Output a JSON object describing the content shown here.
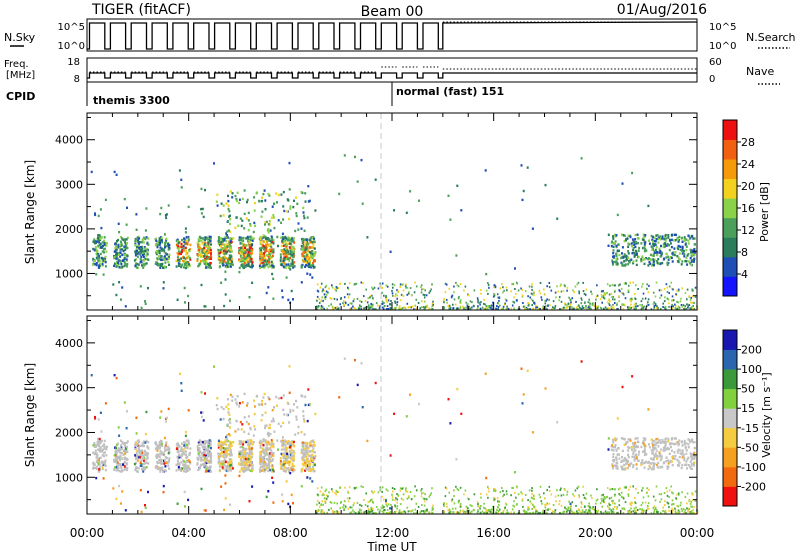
{
  "header": {
    "radar": "TIGER (fitACF)",
    "beam": "Beam 00",
    "date": "01/Aug/2016"
  },
  "panels_top": {
    "nsky_label": "N.Sky",
    "nsearch_label": "N.Search",
    "nsky_ticks": [
      "10^5",
      "10^0"
    ],
    "freq_label_line1": "Freq.",
    "freq_label_line2": "[MHz]",
    "freq_ticks": [
      "18",
      "8"
    ],
    "nave_label": "Nave",
    "nave_ticks": [
      "60",
      "0"
    ],
    "cpid_label": "CPID",
    "cpid_segments": [
      {
        "name": "themis 3300",
        "start_hour": 0,
        "end_hour": 12
      },
      {
        "name": "normal (fast) 151",
        "start_hour": 12,
        "end_hour": 24
      }
    ]
  },
  "colors": {
    "power": [
      "#1414ff",
      "#1e4fb4",
      "#2a7d5c",
      "#4aa05a",
      "#8ad24a",
      "#f2d21e",
      "#f59a0a",
      "#f06010",
      "#ee1010"
    ],
    "velocity": [
      "#f01010",
      "#f26a10",
      "#f5a020",
      "#f5cc40",
      "#c8c8c8",
      "#80d040",
      "#3a9a3a",
      "#2a66b0",
      "#1818b0"
    ],
    "velocity_gray": "#c0c0c0"
  },
  "chart_data": [
    {
      "type": "heatmap",
      "name": "power",
      "ylabel": "Slant Range [km]",
      "ylim": [
        180,
        4600
      ],
      "yticks": [
        1000,
        2000,
        3000,
        4000
      ],
      "xlim": [
        0,
        24
      ],
      "colorbar": {
        "label": "Power [dB]",
        "ticks": [
          "4",
          "8",
          "12",
          "16",
          "20",
          "24",
          "28"
        ],
        "range": [
          0,
          32
        ]
      },
      "scatter_regions": [
        {
          "hours": [
            0,
            9
          ],
          "range_km": [
            1000,
            2000
          ],
          "level": "high",
          "note": "themis sequence, intermittent"
        },
        {
          "hours": [
            9,
            14
          ],
          "range_km": [
            200,
            600
          ],
          "level": "low"
        },
        {
          "hours": [
            14,
            24
          ],
          "range_km": [
            200,
            800
          ],
          "level": "low"
        },
        {
          "hours": [
            20.5,
            24
          ],
          "range_km": [
            1000,
            2000
          ],
          "level": "medium"
        }
      ]
    },
    {
      "type": "heatmap",
      "name": "velocity",
      "ylabel": "Slant Range [km]",
      "xlabel": "Time UT",
      "ylim": [
        180,
        4600
      ],
      "yticks": [
        1000,
        2000,
        3000,
        4000
      ],
      "xlim": [
        0,
        24
      ],
      "xticks": [
        "00:00",
        "04:00",
        "08:00",
        "12:00",
        "16:00",
        "20:00",
        "00:00"
      ],
      "colorbar": {
        "label": "Velocity [m s⁻¹]",
        "ticks": [
          "200",
          "100",
          "50",
          "15",
          "-15",
          "-50",
          "-100",
          "-200"
        ]
      },
      "scatter_regions": [
        {
          "hours": [
            0,
            9
          ],
          "range_km": [
            1000,
            2000
          ],
          "velocity": "near zero (ground scatter)"
        },
        {
          "hours": [
            14,
            24
          ],
          "range_km": [
            200,
            800
          ],
          "velocity": "mixed"
        },
        {
          "hours": [
            20.5,
            24
          ],
          "range_km": [
            1000,
            2000
          ],
          "velocity": "near zero"
        }
      ]
    }
  ]
}
